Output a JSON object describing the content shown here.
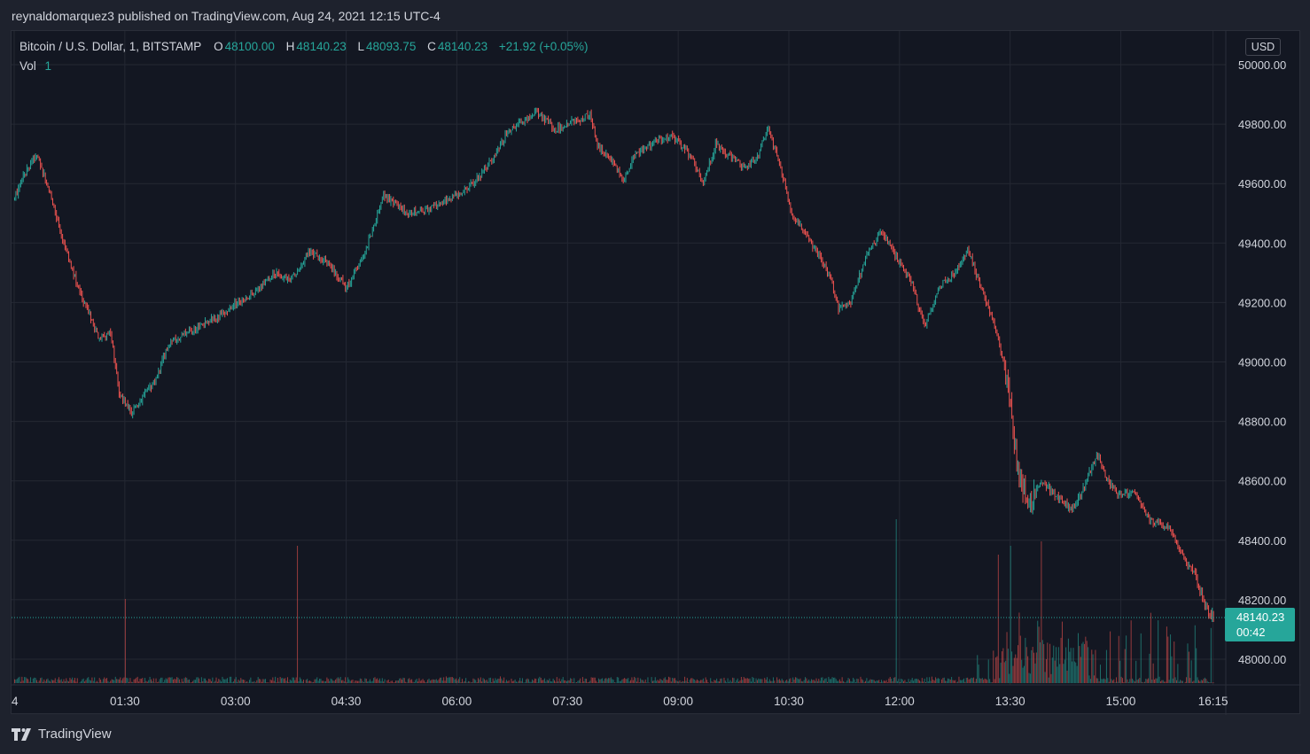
{
  "header": {
    "published_by": "reynaldomarquez3 published on TradingView.com, Aug 24, 2021 12:15 UTC-4"
  },
  "legend": {
    "symbol": "Bitcoin / U.S. Dollar, 1, BITSTAMP",
    "open_label": "O",
    "open": "48100.00",
    "high_label": "H",
    "high": "48140.23",
    "low_label": "L",
    "low": "48093.75",
    "close_label": "C",
    "close": "48140.23",
    "change": "+21.92 (+0.05%)",
    "vol_label": "Vol",
    "vol": "1"
  },
  "price_axis": {
    "currency": "USD",
    "last_price": "48140.23",
    "countdown": "00:42"
  },
  "footer": {
    "brand": "TradingView"
  },
  "colors": {
    "up": "#26a69a",
    "down": "#ef5350",
    "background": "#131722",
    "grid": "#242833",
    "text": "#d1d4dc"
  },
  "chart_data": {
    "type": "candlestick",
    "symbol": "BTCUSD",
    "interval_minutes": 1,
    "ylim": [
      47900,
      50050
    ],
    "y_ticks": [
      48000,
      48200,
      48400,
      48600,
      48800,
      49000,
      49200,
      49400,
      49600,
      49800,
      50000
    ],
    "y_tick_labels": [
      "48000.00",
      "48200.00",
      "48400.00",
      "48600.00",
      "48800.00",
      "49000.00",
      "49200.00",
      "49400.00",
      "49600.00",
      "49800.00",
      "50000.00"
    ],
    "x_tick_labels": [
      "4",
      "01:30",
      "03:00",
      "04:30",
      "06:00",
      "07:30",
      "09:00",
      "10:30",
      "12:00",
      "13:30",
      "15:00",
      "16:15"
    ],
    "x_tick_minutes": [
      0,
      90,
      180,
      270,
      360,
      450,
      540,
      630,
      720,
      810,
      900,
      975
    ],
    "close_path": [
      [
        0,
        49550
      ],
      [
        10,
        49650
      ],
      [
        18,
        49700
      ],
      [
        28,
        49580
      ],
      [
        40,
        49400
      ],
      [
        52,
        49250
      ],
      [
        68,
        49080
      ],
      [
        78,
        49100
      ],
      [
        85,
        48900
      ],
      [
        95,
        48830
      ],
      [
        115,
        48940
      ],
      [
        125,
        49060
      ],
      [
        140,
        49100
      ],
      [
        155,
        49130
      ],
      [
        170,
        49160
      ],
      [
        180,
        49200
      ],
      [
        195,
        49230
      ],
      [
        210,
        49300
      ],
      [
        225,
        49280
      ],
      [
        240,
        49370
      ],
      [
        255,
        49330
      ],
      [
        270,
        49250
      ],
      [
        285,
        49370
      ],
      [
        300,
        49560
      ],
      [
        320,
        49500
      ],
      [
        340,
        49520
      ],
      [
        360,
        49560
      ],
      [
        375,
        49610
      ],
      [
        390,
        49690
      ],
      [
        400,
        49770
      ],
      [
        412,
        49810
      ],
      [
        425,
        49840
      ],
      [
        440,
        49780
      ],
      [
        455,
        49810
      ],
      [
        468,
        49830
      ],
      [
        475,
        49720
      ],
      [
        485,
        49680
      ],
      [
        495,
        49610
      ],
      [
        505,
        49700
      ],
      [
        520,
        49740
      ],
      [
        535,
        49760
      ],
      [
        550,
        49690
      ],
      [
        560,
        49600
      ],
      [
        570,
        49730
      ],
      [
        585,
        49680
      ],
      [
        595,
        49650
      ],
      [
        605,
        49700
      ],
      [
        612,
        49790
      ],
      [
        620,
        49700
      ],
      [
        632,
        49500
      ],
      [
        648,
        49400
      ],
      [
        662,
        49300
      ],
      [
        670,
        49180
      ],
      [
        680,
        49200
      ],
      [
        692,
        49350
      ],
      [
        705,
        49440
      ],
      [
        715,
        49370
      ],
      [
        730,
        49260
      ],
      [
        740,
        49120
      ],
      [
        752,
        49250
      ],
      [
        765,
        49300
      ],
      [
        775,
        49380
      ],
      [
        790,
        49200
      ],
      [
        800,
        49080
      ],
      [
        808,
        48920
      ],
      [
        815,
        48650
      ],
      [
        825,
        48520
      ],
      [
        835,
        48600
      ],
      [
        850,
        48540
      ],
      [
        860,
        48500
      ],
      [
        870,
        48580
      ],
      [
        880,
        48690
      ],
      [
        890,
        48590
      ],
      [
        900,
        48550
      ],
      [
        910,
        48560
      ],
      [
        925,
        48460
      ],
      [
        940,
        48440
      ],
      [
        950,
        48350
      ],
      [
        960,
        48280
      ],
      [
        970,
        48160
      ],
      [
        976,
        48140
      ]
    ],
    "volume_spikes": [
      [
        90,
        95
      ],
      [
        230,
        155
      ],
      [
        717,
        185
      ],
      [
        800,
        145
      ],
      [
        810,
        155
      ],
      [
        835,
        160
      ]
    ]
  }
}
